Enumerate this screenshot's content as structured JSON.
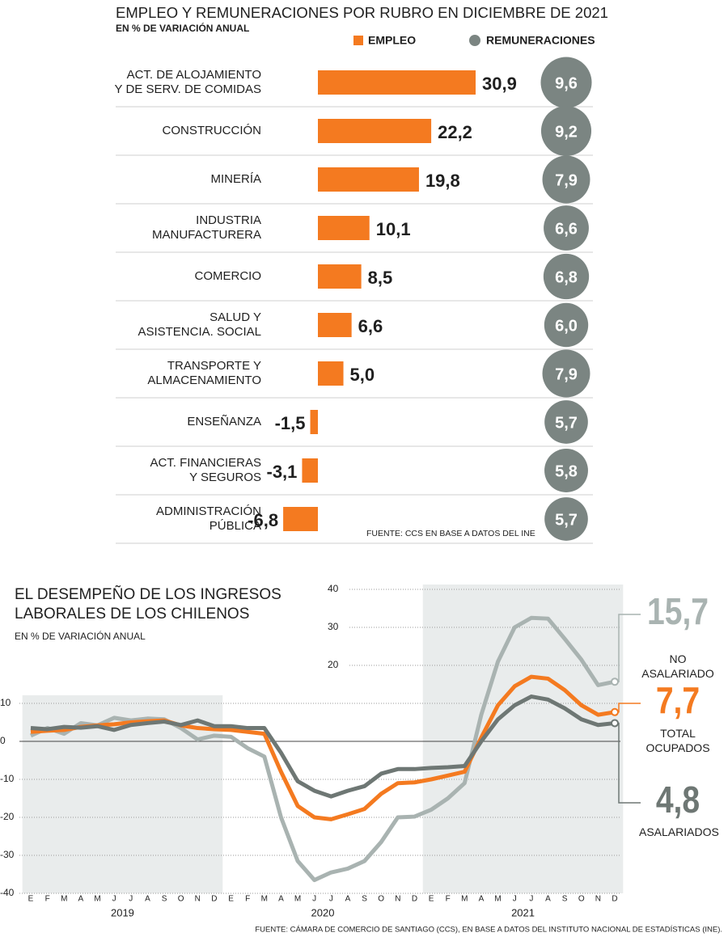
{
  "chart_data": [
    {
      "type": "bar",
      "orientation": "horizontal",
      "title": "EMPLEO Y REMUNERACIONES POR RUBRO EN DICIEMBRE DE 2021",
      "subtitle": "EN % DE VARIACIÓN ANUAL",
      "note": "FUENTE: CCS EN BASE A DATOS DEL INE",
      "categories": [
        "ACT. DE ALOJAMIENTO\nY DE SERV. DE COMIDAS",
        "CONSTRUCCIÓN",
        "MINERÍA",
        "INDUSTRIA\nMANUFACTURERA",
        "COMERCIO",
        "SALUD Y\nASISTENCIA. SOCIAL",
        "TRANSPORTE Y\nALMACENAMIENTO",
        "ENSEÑANZA",
        "ACT. FINANCIERAS\nY SEGUROS",
        "ADMINISTRACIÓN\nPÚBLICA"
      ],
      "series": [
        {
          "name": "EMPLEO",
          "color": "#f47a20",
          "values": [
            30.9,
            22.2,
            19.8,
            10.1,
            8.5,
            6.6,
            5.0,
            -1.5,
            -3.1,
            -6.8
          ],
          "value_labels": [
            "30,9",
            "22,2",
            "19,8",
            "10,1",
            "8,5",
            "6,6",
            "5,0",
            "-1,5",
            "-3,1",
            "-6,8"
          ]
        },
        {
          "name": "REMUNERACIONES",
          "color": "#7b8582",
          "values": [
            9.6,
            9.2,
            7.9,
            6.6,
            6.8,
            6.0,
            7.9,
            5.7,
            5.8,
            5.7
          ],
          "value_labels": [
            "9,6",
            "9,2",
            "7,9",
            "6,6",
            "6,8",
            "6,0",
            "7,9",
            "5,7",
            "5,8",
            "5,7"
          ]
        }
      ]
    },
    {
      "type": "line",
      "title": "EL DESEMPEÑO DE LOS INGRESOS\nLABORALES DE LOS CHILENOS",
      "subtitle": "EN % DE VARIACIÓN ANUAL",
      "source": "FUENTE: CÁMARA DE COMERCIO DE SANTIAGO (CCS), EN BASE A DATOS DEL INSTITUTO NACIONAL DE ESTADÍSTICAS (INE).",
      "categories": [
        "E",
        "F",
        "M",
        "A",
        "M",
        "J",
        "J",
        "A",
        "S",
        "O",
        "N",
        "D",
        "E",
        "F",
        "M",
        "A",
        "M",
        "J",
        "J",
        "A",
        "S",
        "O",
        "N",
        "D",
        "E",
        "F",
        "M",
        "A",
        "M",
        "J",
        "J",
        "A",
        "S",
        "O",
        "N",
        "D"
      ],
      "year_labels": [
        "2019",
        "2020",
        "2021"
      ],
      "ylim": [
        -40,
        40
      ],
      "yticks": [
        -40,
        -30,
        -20,
        -10,
        0,
        10,
        20,
        30,
        40
      ],
      "grid": true,
      "series": [
        {
          "name": "NO\nASALARIADO",
          "color": "#a9b3b1",
          "end_label": "15,7",
          "values": [
            1.5,
            3.5,
            2,
            4.8,
            4.2,
            6.2,
            5.5,
            6,
            5.8,
            3.5,
            0.5,
            1.5,
            1.2,
            -1.8,
            -4,
            -20,
            -31.5,
            -36.5,
            -34.5,
            -33.5,
            -31.5,
            -26.5,
            -20,
            -19.8,
            -18,
            -15,
            -11,
            7,
            21,
            30,
            32.5,
            32.3,
            27,
            21.5,
            14.8,
            15.7
          ]
        },
        {
          "name": "TOTAL\nOCUPADOS",
          "color": "#f47a20",
          "end_label": "7,7",
          "values": [
            2.5,
            2.8,
            3,
            3.8,
            4.2,
            4.5,
            5,
            5.3,
            5.5,
            4.2,
            3.5,
            3.2,
            3,
            2.5,
            2,
            -8,
            -17,
            -20,
            -20.5,
            -19.2,
            -17.8,
            -13.8,
            -11,
            -10.8,
            -10,
            -9,
            -8,
            1,
            9.5,
            14.5,
            17,
            16.5,
            13.5,
            9.5,
            7,
            7.7
          ]
        },
        {
          "name": "ASALARIADOS",
          "color": "#6e7774",
          "end_label": "4,8",
          "values": [
            3.5,
            3.2,
            3.8,
            3.6,
            4,
            3,
            4.3,
            4.8,
            5.2,
            4.3,
            5.5,
            4.0,
            4,
            3.5,
            3.5,
            -3,
            -10.5,
            -13,
            -14.5,
            -13,
            -11.8,
            -8.5,
            -7.3,
            -7.3,
            -7,
            -6.8,
            -6.5,
            0,
            5.8,
            9.5,
            11.8,
            11,
            8.7,
            5.8,
            4.3,
            4.8
          ]
        }
      ]
    }
  ]
}
